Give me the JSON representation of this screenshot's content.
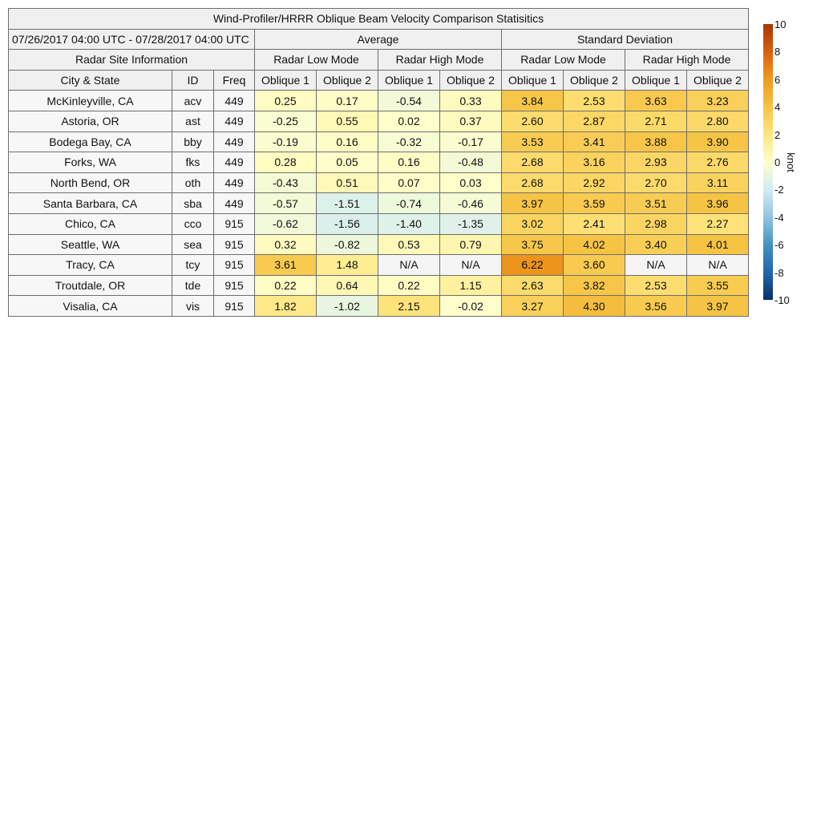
{
  "chart_data": {
    "type": "table",
    "title": "Wind-Profiler/HRRR Oblique Beam Velocity Comparison Statisitics",
    "date_range": "07/26/2017 04:00 UTC - 07/28/2017 04:00 UTC",
    "group_headers": [
      "Average",
      "Standard Deviation"
    ],
    "site_header": "Radar Site Information",
    "mode_headers": [
      "Radar Low Mode",
      "Radar High Mode",
      "Radar Low Mode",
      "Radar High Mode"
    ],
    "column_headers": [
      "City & State",
      "ID",
      "Freq",
      "Oblique 1",
      "Oblique 2",
      "Oblique 1",
      "Oblique 2",
      "Oblique 1",
      "Oblique 2",
      "Oblique 1",
      "Oblique 2"
    ],
    "rows": [
      {
        "city": "McKinleyville, CA",
        "id": "acv",
        "freq": "449",
        "values": [
          "0.25",
          "0.17",
          "-0.54",
          "0.33",
          "3.84",
          "2.53",
          "3.63",
          "3.23"
        ]
      },
      {
        "city": "Astoria, OR",
        "id": "ast",
        "freq": "449",
        "values": [
          "-0.25",
          "0.55",
          "0.02",
          "0.37",
          "2.60",
          "2.87",
          "2.71",
          "2.80"
        ]
      },
      {
        "city": "Bodega Bay, CA",
        "id": "bby",
        "freq": "449",
        "values": [
          "-0.19",
          "0.16",
          "-0.32",
          "-0.17",
          "3.53",
          "3.41",
          "3.88",
          "3.90"
        ]
      },
      {
        "city": "Forks, WA",
        "id": "fks",
        "freq": "449",
        "values": [
          "0.28",
          "0.05",
          "0.16",
          "-0.48",
          "2.68",
          "3.16",
          "2.93",
          "2.76"
        ]
      },
      {
        "city": "North Bend, OR",
        "id": "oth",
        "freq": "449",
        "values": [
          "-0.43",
          "0.51",
          "0.07",
          "0.03",
          "2.68",
          "2.92",
          "2.70",
          "3.11"
        ]
      },
      {
        "city": "Santa Barbara, CA",
        "id": "sba",
        "freq": "449",
        "values": [
          "-0.57",
          "-1.51",
          "-0.74",
          "-0.46",
          "3.97",
          "3.59",
          "3.51",
          "3.96"
        ]
      },
      {
        "city": "Chico, CA",
        "id": "cco",
        "freq": "915",
        "values": [
          "-0.62",
          "-1.56",
          "-1.40",
          "-1.35",
          "3.02",
          "2.41",
          "2.98",
          "2.27"
        ]
      },
      {
        "city": "Seattle, WA",
        "id": "sea",
        "freq": "915",
        "values": [
          "0.32",
          "-0.82",
          "0.53",
          "0.79",
          "3.75",
          "4.02",
          "3.40",
          "4.01"
        ]
      },
      {
        "city": "Tracy, CA",
        "id": "tcy",
        "freq": "915",
        "values": [
          "3.61",
          "1.48",
          "N/A",
          "N/A",
          "6.22",
          "3.60",
          "N/A",
          "N/A"
        ]
      },
      {
        "city": "Troutdale, OR",
        "id": "tde",
        "freq": "915",
        "values": [
          "0.22",
          "0.64",
          "0.22",
          "1.15",
          "2.63",
          "3.82",
          "2.53",
          "3.55"
        ]
      },
      {
        "city": "Visalia, CA",
        "id": "vis",
        "freq": "915",
        "values": [
          "1.82",
          "-1.02",
          "2.15",
          "-0.02",
          "3.27",
          "4.30",
          "3.56",
          "3.97"
        ]
      }
    ],
    "colorbar": {
      "min": -10,
      "max": 10,
      "ticks": [
        "10",
        "8",
        "6",
        "4",
        "2",
        "0",
        "-2",
        "-4",
        "-6",
        "-8",
        "-10"
      ],
      "units": "knot",
      "stops": [
        "#08306b",
        "#2166ac",
        "#4393c3",
        "#92c5de",
        "#d1ecf4",
        "#ffffcc",
        "#ffe680",
        "#f6c343",
        "#ef9a1e",
        "#d95f0e",
        "#a63603"
      ],
      "na_color": "#f5f5f5"
    }
  }
}
